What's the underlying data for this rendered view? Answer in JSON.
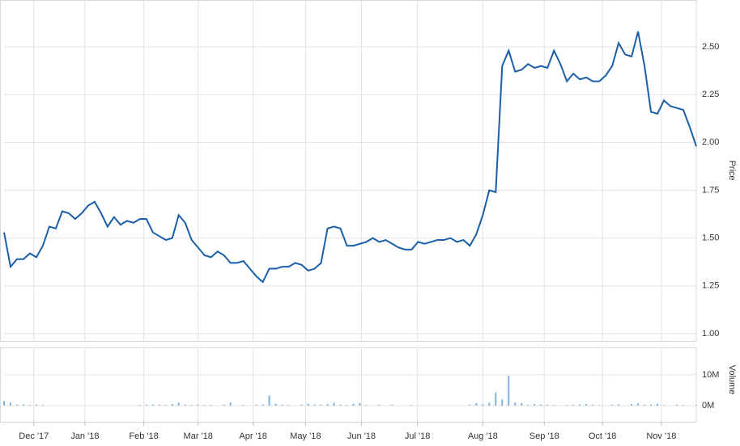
{
  "chart_data": [
    {
      "type": "line",
      "y_label": "Price",
      "xlim": [
        0,
        107
      ],
      "ylim": [
        0.962,
        2.745
      ],
      "yticks": [
        {
          "value": 2.5,
          "label": "2.50"
        },
        {
          "value": 2.25,
          "label": "2.25"
        },
        {
          "value": 2,
          "label": "2.00"
        },
        {
          "value": 1.75,
          "label": "1.75"
        },
        {
          "value": 1.5,
          "label": "1.50"
        },
        {
          "value": 1.25,
          "label": "1.25"
        },
        {
          "value": 1,
          "label": "1.00"
        }
      ],
      "grid": true,
      "series": [
        {
          "color": "#1a5fa8",
          "values": [
            1.53,
            1.35,
            1.39,
            1.39,
            1.42,
            1.4,
            1.46,
            1.56,
            1.55,
            1.64,
            1.63,
            1.6,
            1.63,
            1.67,
            1.69,
            1.63,
            1.56,
            1.61,
            1.57,
            1.59,
            1.58,
            1.6,
            1.6,
            1.53,
            1.51,
            1.49,
            1.5,
            1.62,
            1.58,
            1.49,
            1.45,
            1.41,
            1.4,
            1.43,
            1.41,
            1.37,
            1.37,
            1.38,
            1.34,
            1.3,
            1.27,
            1.34,
            1.34,
            1.35,
            1.35,
            1.37,
            1.36,
            1.33,
            1.34,
            1.37,
            1.55,
            1.56,
            1.55,
            1.46,
            1.46,
            1.47,
            1.48,
            1.5,
            1.48,
            1.49,
            1.47,
            1.45,
            1.44,
            1.44,
            1.48,
            1.47,
            1.48,
            1.49,
            1.49,
            1.5,
            1.48,
            1.49,
            1.46,
            1.52,
            1.62,
            1.75,
            1.74,
            2.4,
            2.48,
            2.37,
            2.38,
            2.41,
            2.39,
            2.4,
            2.39,
            2.48,
            2.41,
            2.32,
            2.36,
            2.33,
            2.34,
            2.32,
            2.32,
            2.35,
            2.4,
            2.52,
            2.46,
            2.45,
            2.58,
            2.4,
            2.16,
            2.15,
            2.22,
            2.19,
            2.18,
            2.17,
            2.08,
            1.98
          ]
        }
      ]
    },
    {
      "type": "bar",
      "y_label": "Volume",
      "xlim": [
        0,
        107
      ],
      "ylim": [
        -5250000,
        18900000
      ],
      "yticks": [
        {
          "value": 10000000,
          "label": "10M"
        },
        {
          "value": 0,
          "label": "0M"
        }
      ],
      "xticks": [
        {
          "value": 4.6,
          "label": "Dec '17"
        },
        {
          "value": 12.5,
          "label": "Jan '18"
        },
        {
          "value": 21.6,
          "label": "Feb '18"
        },
        {
          "value": 30,
          "label": "Mar '18"
        },
        {
          "value": 38.5,
          "label": "Apr '18"
        },
        {
          "value": 46.6,
          "label": "May '18"
        },
        {
          "value": 55.25,
          "label": "Jun '18"
        },
        {
          "value": 63.9,
          "label": "Jul '18"
        },
        {
          "value": 74,
          "label": "Aug '18"
        },
        {
          "value": 83.5,
          "label": "Sep '18"
        },
        {
          "value": 92.5,
          "label": "Oct '18"
        },
        {
          "value": 101.6,
          "label": "Nov '18"
        }
      ],
      "series": [
        {
          "color": "#7fb2e0",
          "values": [
            1500000,
            900000,
            300000,
            400000,
            200000,
            300000,
            200000,
            0,
            0,
            0,
            0,
            0,
            0,
            0,
            0,
            0,
            0,
            0,
            0,
            0,
            0,
            200000,
            300000,
            400000,
            300000,
            200000,
            500000,
            900000,
            300000,
            200000,
            300000,
            200000,
            200000,
            0,
            300000,
            1000000,
            0,
            200000,
            0,
            300000,
            400000,
            3300000,
            600000,
            300000,
            200000,
            0,
            300000,
            600000,
            400000,
            300000,
            500000,
            900000,
            400000,
            200000,
            600000,
            900000,
            200000,
            0,
            300000,
            0,
            300000,
            0,
            0,
            200000,
            0,
            0,
            0,
            0,
            0,
            0,
            0,
            0,
            300000,
            800000,
            400000,
            900000,
            4300000,
            2000000,
            9700000,
            1000000,
            800000,
            300000,
            500000,
            400000,
            300000,
            200000,
            0,
            200000,
            300000,
            400000,
            500000,
            300000,
            200000,
            0,
            300000,
            400000,
            0,
            500000,
            700000,
            300000,
            400000,
            600000,
            200000,
            0,
            300000,
            200000,
            0,
            200000
          ]
        }
      ]
    }
  ]
}
